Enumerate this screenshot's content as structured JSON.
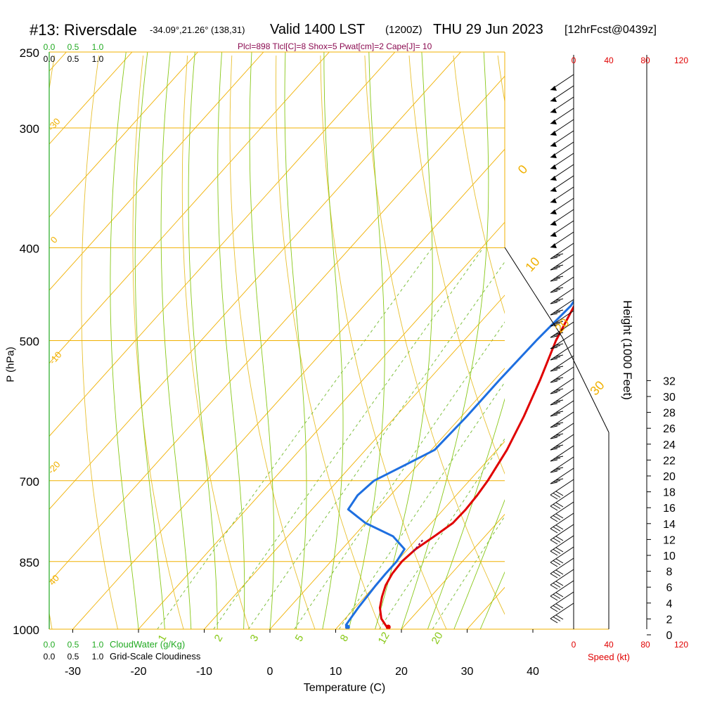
{
  "header": {
    "station": "#13: Riversdale",
    "coords": "-34.09°,21.26° (138,31)",
    "valid": "Valid 1400 LST",
    "zulu": "(1200Z)",
    "date": "THU 29 Jun 2023",
    "forecast": "[12hrFcst@0439z]",
    "indices": "Plcl=898 Tlcl[C]=8 Shox=5 Pwat[cm]=2 Cape[J]= 10"
  },
  "colors": {
    "temperature": "#e00000",
    "dewpoint": "#1e6fe0",
    "isotherm": "#f0b000",
    "dry_adiabat": "#e8c030",
    "moist_adiabat": "#88c818",
    "mixing_ratio": "#7fc040",
    "cloud": "#22aa22",
    "speed": "#e00000",
    "parcel": "#8b0a50"
  },
  "chart_data": {
    "type": "line",
    "xlabel": "Temperature (C)",
    "ylabel": "P (hPa)",
    "right_label": "Height (1000 Feet)",
    "x_ticks": [
      "-30",
      "-20",
      "-10",
      "0",
      "10",
      "20",
      "30",
      "40"
    ],
    "x_tick_values": [
      -30,
      -20,
      -10,
      0,
      10,
      20,
      30,
      40
    ],
    "pressure_labels": [
      "250",
      "300",
      "400",
      "500",
      "700",
      "850",
      "1000"
    ],
    "pressure_values": [
      250,
      300,
      400,
      500,
      700,
      850,
      1000
    ],
    "height_ticks": [
      "0",
      "2",
      "4",
      "6",
      "8",
      "10",
      "12",
      "14",
      "16",
      "18",
      "20",
      "22",
      "24",
      "26",
      "28",
      "30",
      "32"
    ],
    "isotherm_labels": [
      "40",
      "30",
      "20",
      "10",
      "0",
      "-10",
      "-20",
      "-30"
    ],
    "mixing_ratio_labels": [
      "1",
      "2",
      "3",
      "5",
      "8",
      "12",
      "20"
    ],
    "cloud_top_ticks": [
      "0.0",
      "0.5",
      "1.0"
    ],
    "cloud_bottom_ticks": [
      "0.0",
      "0.5",
      "1.0"
    ],
    "cloudwater_label": "CloudWater (g/Kg)",
    "cloudiness_label": "Grid-Scale Cloudiness",
    "speed_ticks": [
      "0",
      "40",
      "80",
      "120"
    ],
    "speed_label": "Speed (kt)",
    "series": [
      {
        "name": "temperature",
        "points": [
          [
            18,
            1000
          ],
          [
            15.5,
            975
          ],
          [
            13.8,
            950
          ],
          [
            12.6,
            925
          ],
          [
            11.6,
            900
          ],
          [
            11.0,
            875
          ],
          [
            10.8,
            850
          ],
          [
            11.2,
            825
          ],
          [
            12.3,
            800
          ],
          [
            13.3,
            775
          ],
          [
            13.4,
            750
          ],
          [
            13.2,
            725
          ],
          [
            12.8,
            700
          ],
          [
            11.5,
            650
          ],
          [
            9.5,
            600
          ],
          [
            7.0,
            550
          ],
          [
            4.0,
            500
          ],
          [
            1.5,
            450
          ],
          [
            -0.8,
            400
          ],
          [
            -3.2,
            375
          ],
          [
            -5.5,
            350
          ],
          [
            -8.2,
            325
          ],
          [
            -11.5,
            300
          ],
          [
            -14.5,
            280
          ],
          [
            -16.5,
            265
          ]
        ]
      },
      {
        "name": "dewpoint",
        "points": [
          [
            11.8,
            1000
          ],
          [
            11.0,
            990
          ],
          [
            10.8,
            975
          ],
          [
            10.5,
            950
          ],
          [
            10.3,
            925
          ],
          [
            10.1,
            900
          ],
          [
            10.0,
            875
          ],
          [
            10.0,
            850
          ],
          [
            9.5,
            825
          ],
          [
            6,
            800
          ],
          [
            0,
            775
          ],
          [
            -4.5,
            750
          ],
          [
            -5.0,
            725
          ],
          [
            -4.5,
            700
          ],
          [
            -2.0,
            675
          ],
          [
            0.5,
            650
          ],
          [
            0.8,
            600
          ],
          [
            0.8,
            550
          ],
          [
            1.0,
            500
          ],
          [
            1.5,
            460
          ],
          [
            0.5,
            430
          ],
          [
            -2.0,
            400
          ],
          [
            -5.0,
            365
          ],
          [
            -9.0,
            330
          ],
          [
            -13.5,
            300
          ],
          [
            -17.5,
            280
          ],
          [
            -20.0,
            265
          ]
        ]
      }
    ],
    "height_profile": [
      [
        0,
        1000
      ],
      [
        0,
        970
      ],
      [
        -3,
        940
      ],
      [
        -5,
        870
      ],
      [
        -5,
        720
      ],
      [
        -7,
        470
      ],
      [
        -10,
        380
      ],
      [
        -6,
        290
      ]
    ],
    "wind_speed_profile": [
      [
        0,
        1000
      ],
      [
        20,
        1000
      ],
      [
        28,
        980
      ],
      [
        30,
        930
      ],
      [
        33,
        880
      ],
      [
        34,
        850
      ],
      [
        45,
        790
      ],
      [
        38,
        740
      ],
      [
        37,
        680
      ],
      [
        37,
        550
      ],
      [
        39,
        450
      ],
      [
        40,
        400
      ],
      [
        45,
        340
      ],
      [
        48,
        300
      ],
      [
        50,
        263
      ]
    ]
  }
}
